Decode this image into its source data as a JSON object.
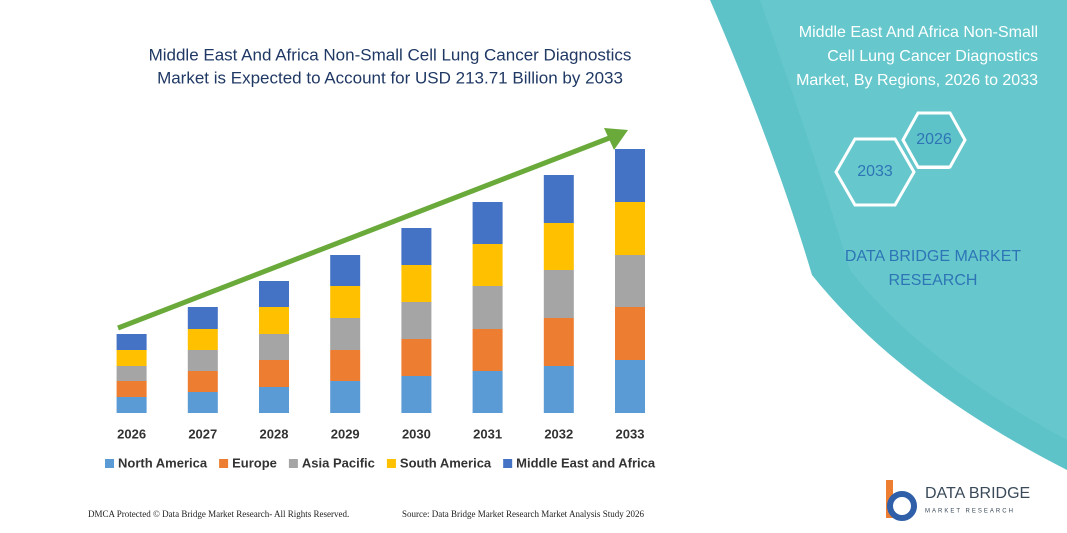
{
  "chart_data": {
    "type": "bar",
    "stacked": true,
    "title": [
      "Middle East And Africa Non-Small Cell Lung Cancer Diagnostics",
      "Market is Expected to Account for USD 213.71 Billion by 2033"
    ],
    "categories": [
      "2026",
      "2027",
      "2028",
      "2029",
      "2030",
      "2031",
      "2032",
      "2033"
    ],
    "series": [
      {
        "name": "North America",
        "color": "#5b9bd5",
        "values": [
          16,
          21,
          26,
          32,
          37,
          42,
          47,
          53
        ]
      },
      {
        "name": "Europe",
        "color": "#ed7d31",
        "values": [
          16,
          21,
          27,
          31,
          37,
          42,
          48,
          53
        ]
      },
      {
        "name": "Asia Pacific",
        "color": "#a5a5a5",
        "values": [
          15,
          21,
          26,
          32,
          37,
          43,
          48,
          52
        ]
      },
      {
        "name": "South America",
        "color": "#ffc000",
        "values": [
          16,
          21,
          27,
          32,
          37,
          42,
          47,
          53
        ]
      },
      {
        "name": "Middle East and Africa",
        "color": "#4472c4",
        "values": [
          16,
          22,
          26,
          31,
          37,
          42,
          48,
          53
        ]
      }
    ],
    "ylim": [
      0,
      264
    ],
    "grid": false,
    "legend": "bottom"
  },
  "panel": {
    "title": [
      "Middle East And Africa Non-Small",
      "Cell Lung Cancer Diagnostics",
      "Market, By Regions, 2026 to 2033"
    ],
    "hexagons": [
      "2026",
      "2033"
    ],
    "brand": [
      "DATA BRIDGE MARKET",
      "RESEARCH"
    ]
  },
  "footer": {
    "left": "DMCA Protected © Data Bridge Market Research- All Rights Reserved.",
    "right": "Source: Data Bridge Market Research Market Analysis Study 2026"
  },
  "logo": {
    "name": "DATA BRIDGE",
    "tagline": "MARKET RESEARCH"
  }
}
